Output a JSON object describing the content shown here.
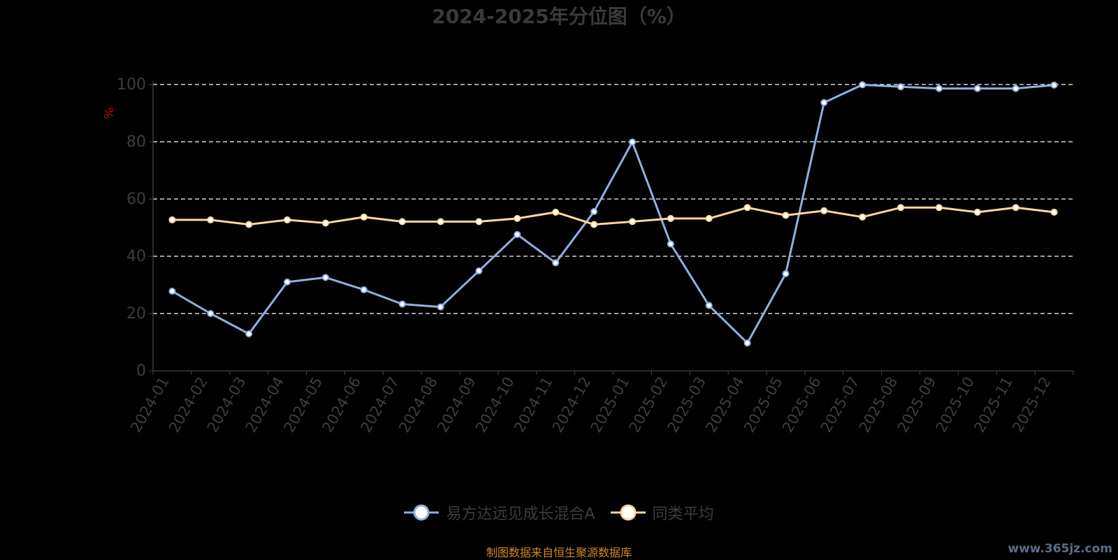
{
  "chart_data": {
    "type": "line",
    "title": "2024-2025年分位图（%）",
    "ylabel": "%",
    "ylim": [
      0,
      100
    ],
    "yticks": [
      "0",
      "20",
      "40",
      "60",
      "80",
      "100"
    ],
    "grid": true,
    "legend_position": "bottom-center",
    "categories": [
      "2024-01",
      "2024-02",
      "2024-03",
      "2024-04",
      "2024-05",
      "2024-06",
      "2024-07",
      "2024-08",
      "2024-09",
      "2024-10",
      "2024-11",
      "2024-12",
      "2025-01",
      "2025-02",
      "2025-03",
      "2025-04",
      "2025-05",
      "2025-06",
      "2025-07",
      "2025-08",
      "2025-09",
      "2025-10",
      "2025-11",
      "2025-12"
    ],
    "series": [
      {
        "name": "易方达远见成长混合A",
        "color": "#8fb0e0",
        "values": [
          27.8,
          20.0,
          12.9,
          31.0,
          32.6,
          28.3,
          23.3,
          22.3,
          34.9,
          47.6,
          37.7,
          55.6,
          79.9,
          44.3,
          22.8,
          9.7,
          33.9,
          93.7,
          99.9,
          99.2,
          98.6,
          98.6,
          98.6,
          99.8
        ]
      },
      {
        "name": "同类平均",
        "color": "#ffd89a",
        "values": [
          52.7,
          52.7,
          51.1,
          52.7,
          51.6,
          53.7,
          52.1,
          52.1,
          52.1,
          53.2,
          55.4,
          51.1,
          52.1,
          53.2,
          53.2,
          57.0,
          54.3,
          55.9,
          53.7,
          57.0,
          57.0,
          55.4,
          57.0,
          55.4
        ]
      }
    ]
  },
  "source_note": "制图数据来自恒生聚源数据库",
  "watermark": "www.365jz.com"
}
